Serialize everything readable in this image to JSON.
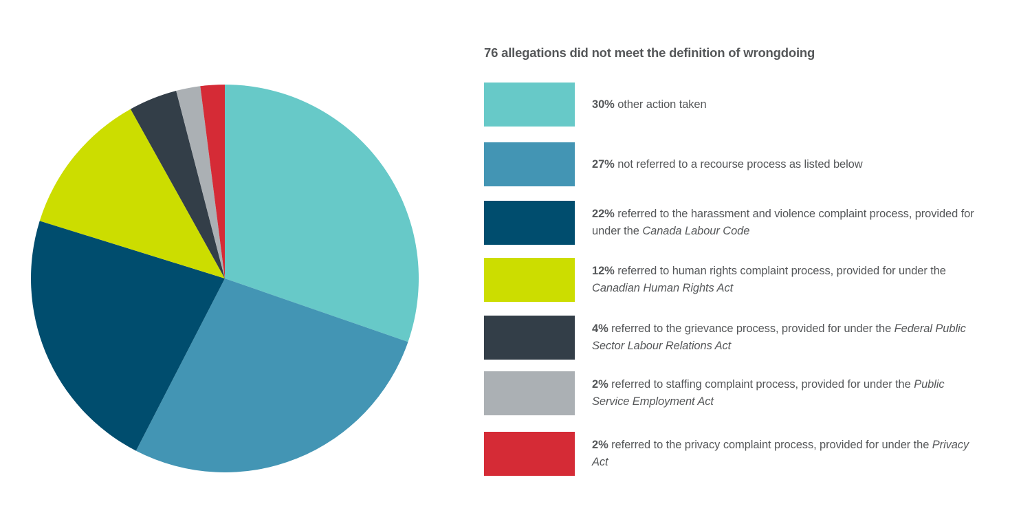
{
  "chart_data": {
    "type": "pie",
    "title": "76 allegations did not meet the definition of wrongdoing",
    "start_angle": "top, clockwise",
    "legend_position": "right",
    "slices": [
      {
        "value": 30,
        "pct": "30%",
        "text": " other action taken",
        "act": "",
        "color": "#67C9C8"
      },
      {
        "value": 27,
        "pct": "27%",
        "text": " not referred to a recourse process as listed below",
        "act": "",
        "color": "#4395B4"
      },
      {
        "value": 22,
        "pct": "22%",
        "text": " referred to the harassment and violence complaint process, provided for under the ",
        "act": "Canada Labour Code",
        "color": "#004D6E"
      },
      {
        "value": 12,
        "pct": "12%",
        "text": " referred to human rights complaint process, provided for under the ",
        "act": "Canadian Human Rights Act",
        "color": "#CCDD00"
      },
      {
        "value": 4,
        "pct": "4%",
        "text": " referred to the grievance process, provided for under the ",
        "act": "Federal Public Sector Labour Relations Act",
        "color": "#333E48"
      },
      {
        "value": 2,
        "pct": "2%",
        "text": " referred to staffing complaint process, provided for under the ",
        "act": "Public Service Employment Act",
        "color": "#ABB0B4"
      },
      {
        "value": 2,
        "pct": "2%",
        "text": " referred to the privacy complaint process, provided for under the ",
        "act": "Privacy Act",
        "color": "#D52B36"
      }
    ]
  }
}
